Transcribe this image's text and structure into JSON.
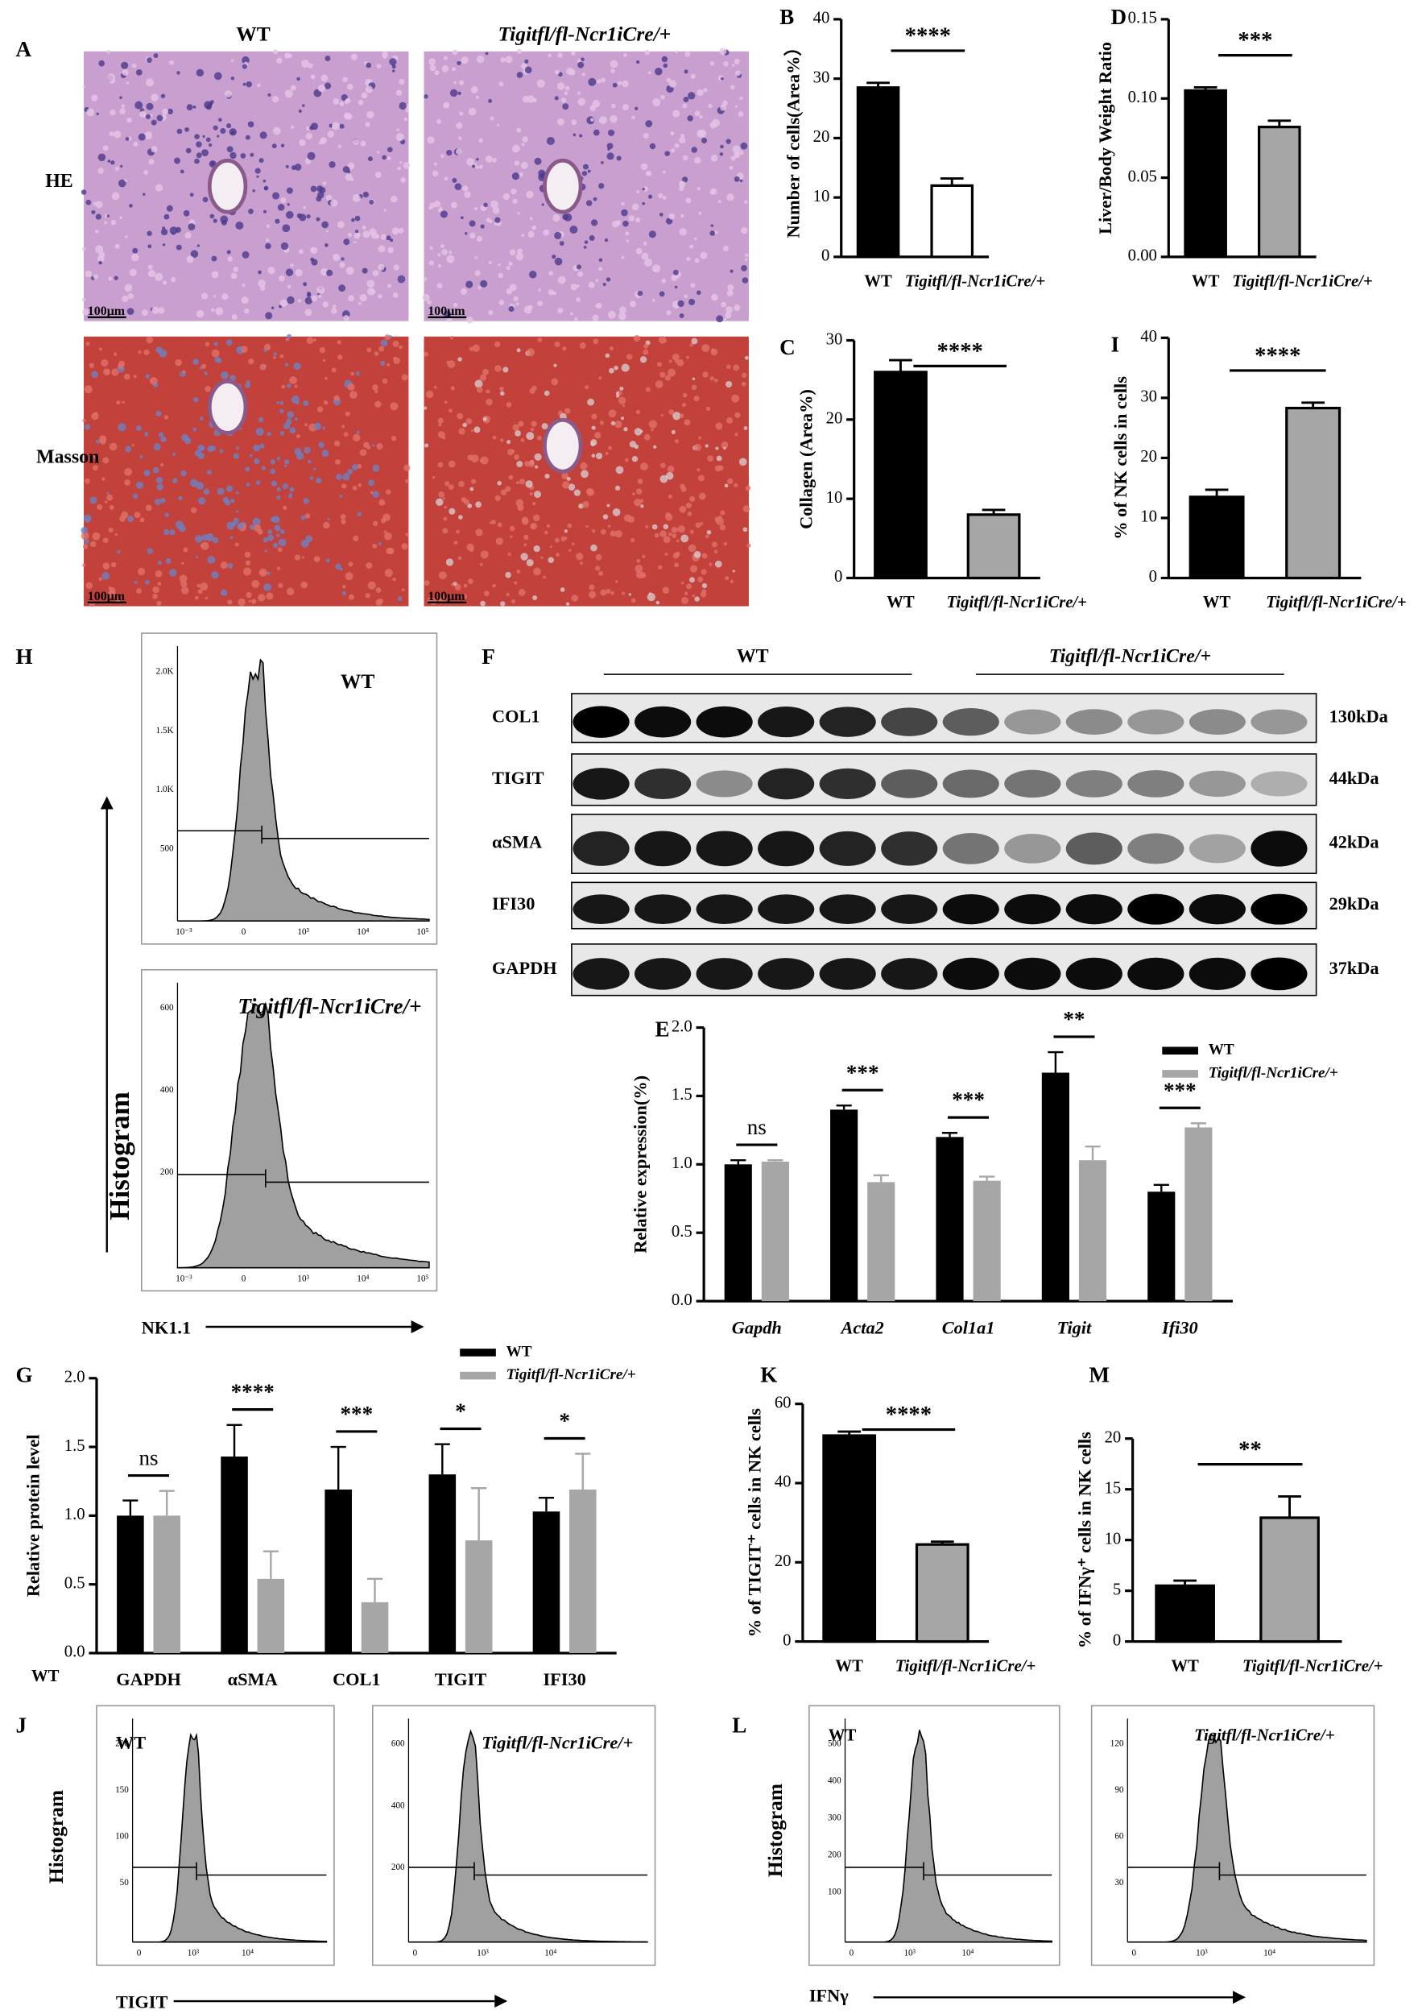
{
  "panel_labels": [
    "A",
    "B",
    "C",
    "D",
    "E",
    "F",
    "G",
    "H",
    "I",
    "J",
    "K",
    "L",
    "M"
  ],
  "micrographs": {
    "columns": [
      "WT",
      "Tigitfl/fl-Ncr1iCre/+"
    ],
    "rows": [
      "HE",
      "Masson"
    ],
    "scale_bars": [
      "100μm",
      "100μm",
      "100μm",
      "100μm"
    ]
  },
  "western_blot": {
    "groups": [
      "WT",
      "Tigitfl/fl-Ncr1iCre/+"
    ],
    "proteins": [
      "COL1",
      "TIGIT",
      "αSMA",
      "IFI30",
      "GAPDH"
    ],
    "sizes": [
      "130kDa",
      "44kDa",
      "42kDa",
      "29kDa",
      "37kDa"
    ]
  },
  "flow_axes": [
    {
      "ylabel": "Histogram",
      "xlabel": "NK1.1"
    },
    {
      "ylabel": "Histogram",
      "xlabel": "TIGIT"
    },
    {
      "ylabel": "Histogram",
      "xlabel": "IFNγ"
    }
  ],
  "flow_panels": [
    {
      "label": "WT",
      "yticks": [
        "2.0K",
        "1.5K",
        "1.0K",
        "500"
      ],
      "xticks": [
        "10⁻³",
        "0",
        "10³",
        "10⁴",
        "10⁵"
      ]
    },
    {
      "label": "Tigitfl/fl-Ncr1iCre/+",
      "yticks": [
        "600",
        "400",
        "200"
      ],
      "xticks": [
        "10⁻³",
        "0",
        "10³",
        "10⁴",
        "10⁵"
      ]
    },
    {
      "label": "WT",
      "yticks": [
        "200",
        "150",
        "100",
        "50"
      ],
      "xticks": [
        "0",
        "10³",
        "10⁴"
      ]
    },
    {
      "label": "Tigitfl/fl-Ncr1iCre/+",
      "yticks": [
        "600",
        "400",
        "200"
      ],
      "xticks": [
        "0",
        "10³",
        "10⁴"
      ]
    },
    {
      "label": "WT",
      "yticks": [
        "500",
        "400",
        "300",
        "200",
        "100"
      ],
      "xticks": [
        "0",
        "10³",
        "10⁴"
      ]
    },
    {
      "label": "Tigitfl/fl-Ncr1iCre/+",
      "yticks": [
        "120",
        "90",
        "60",
        "30"
      ],
      "xticks": [
        "0",
        "10³",
        "10⁴"
      ]
    }
  ],
  "chart_data": [
    {
      "type": "bar",
      "ylabel": "Number of cells(Area%）",
      "categories": [
        "WT",
        "Tigitfl/fl-Ncr1iCre/+"
      ],
      "values": [
        28.5,
        12
      ],
      "errors": [
        0.8,
        1.2
      ],
      "colors": [
        "#000000",
        "#ffffff"
      ],
      "ylim": [
        0,
        40
      ],
      "yticks": [
        0,
        10,
        20,
        30,
        40
      ],
      "significance": "****"
    },
    {
      "type": "bar",
      "ylabel": "Collagen (Area%)",
      "categories": [
        "WT",
        "Tigitfl/fl-Ncr1iCre/+"
      ],
      "values": [
        26,
        8
      ],
      "errors": [
        1.5,
        0.6
      ],
      "colors": [
        "#000000",
        "#a6a6a6"
      ],
      "ylim": [
        0,
        30
      ],
      "yticks": [
        0,
        10,
        20,
        30
      ],
      "significance": "****"
    },
    {
      "type": "bar",
      "ylabel": "Liver/Body Weight Ratio",
      "categories": [
        "WT",
        "Tigitfl/fl-Ncr1iCre/+"
      ],
      "values": [
        0.105,
        0.082
      ],
      "errors": [
        0.002,
        0.004
      ],
      "colors": [
        "#000000",
        "#a6a6a6"
      ],
      "ylim": [
        0,
        0.15
      ],
      "yticks": [
        {
          "value": 0,
          "label": "0.00"
        },
        {
          "value": 0.05,
          "label": "0.05"
        },
        {
          "value": 0.1,
          "label": "0.10"
        },
        {
          "value": 0.15,
          "label": "0.15"
        }
      ],
      "significance": "***"
    },
    {
      "type": "bar",
      "ylabel": "% of NK cells in cells",
      "categories": [
        "WT",
        "Tigitfl/fl-Ncr1iCre/+"
      ],
      "values": [
        13.5,
        28.3
      ],
      "errors": [
        1.2,
        0.9
      ],
      "colors": [
        "#000000",
        "#a6a6a6"
      ],
      "ylim": [
        0,
        40
      ],
      "yticks": [
        0,
        10,
        20,
        30,
        40
      ],
      "significance": "****"
    },
    {
      "type": "grouped_bar",
      "ylabel": "Relative expression(%)",
      "categories": [
        "Gapdh",
        "Acta2",
        "Col1a1",
        "Tigit",
        "Ifi30"
      ],
      "series": [
        {
          "name": "WT",
          "color": "#000000",
          "values": [
            1.0,
            1.4,
            1.2,
            1.67,
            0.8
          ],
          "errors": [
            0.03,
            0.03,
            0.03,
            0.15,
            0.05
          ]
        },
        {
          "name": "Tigitfl/fl-Ncr1iCre/+",
          "color": "#a6a6a6",
          "values": [
            1.02,
            0.87,
            0.88,
            1.03,
            1.27
          ],
          "errors": [
            0.01,
            0.05,
            0.03,
            0.1,
            0.03
          ]
        }
      ],
      "ylim": [
        0,
        2
      ],
      "yticks": [
        {
          "value": 0,
          "label": "0.0"
        },
        {
          "value": 0.5,
          "label": "0.5"
        },
        {
          "value": 1,
          "label": "1.0"
        },
        {
          "value": 1.5,
          "label": "1.5"
        },
        {
          "value": 2,
          "label": "2.0"
        }
      ],
      "significance": [
        "ns",
        "***",
        "***",
        "**",
        "***"
      ]
    },
    {
      "type": "grouped_bar",
      "ylabel": "Relative protein level",
      "annotation": "WT",
      "categories": [
        "GAPDH",
        "αSMA",
        "COL1",
        "TIGIT",
        "IFI30"
      ],
      "series": [
        {
          "name": "WT",
          "color": "#000000",
          "values": [
            1.0,
            1.43,
            1.19,
            1.3,
            1.03
          ],
          "errors": [
            0.11,
            0.23,
            0.31,
            0.22,
            0.1
          ]
        },
        {
          "name": "Tigitfl/fl-Ncr1iCre/+",
          "color": "#a6a6a6",
          "values": [
            1.0,
            0.54,
            0.37,
            0.82,
            1.19
          ],
          "errors": [
            0.18,
            0.2,
            0.17,
            0.38,
            0.26
          ]
        }
      ],
      "ylim": [
        0,
        2
      ],
      "yticks": [
        {
          "value": 0,
          "label": "0.0"
        },
        {
          "value": 0.5,
          "label": "0.5"
        },
        {
          "value": 1,
          "label": "1.0"
        },
        {
          "value": 1.5,
          "label": "1.5"
        },
        {
          "value": 2,
          "label": "2.0"
        }
      ],
      "significance": [
        "ns",
        "****",
        "***",
        "*",
        "*"
      ]
    },
    {
      "type": "bar",
      "ylabel": "% of TIGIT⁺ cells in NK cells",
      "categories": [
        "WT",
        "Tigitfl/fl-Ncr1iCre/+"
      ],
      "values": [
        52,
        24.5
      ],
      "errors": [
        1,
        0.7
      ],
      "colors": [
        "#000000",
        "#a6a6a6"
      ],
      "ylim": [
        0,
        60
      ],
      "yticks": [
        0,
        20,
        40,
        60
      ],
      "significance": "****"
    },
    {
      "type": "bar",
      "ylabel": "% of IFNγ⁺ cells in NK cells",
      "categories": [
        "WT",
        "Tigitfl/fl-Ncr1iCre/+"
      ],
      "values": [
        5.5,
        12.2
      ],
      "errors": [
        0.5,
        2.1
      ],
      "colors": [
        "#000000",
        "#a6a6a6"
      ],
      "ylim": [
        0,
        20
      ],
      "yticks": [
        0,
        5,
        10,
        15,
        20
      ],
      "significance": "**"
    }
  ]
}
